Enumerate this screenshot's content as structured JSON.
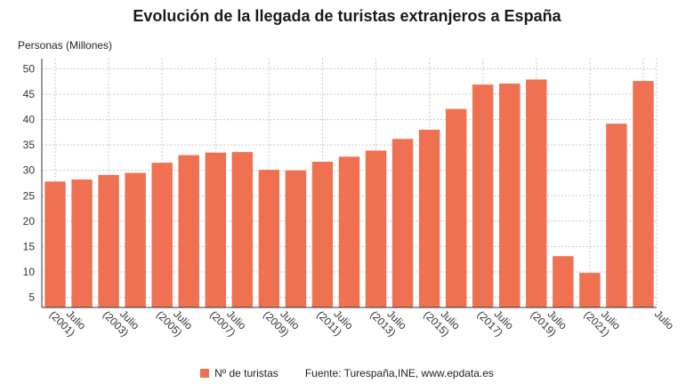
{
  "chart_data": {
    "type": "bar",
    "title": "Evolución de la llegada de turistas extranjeros a España",
    "ylabel": "Personas (Millones)",
    "xlabel": "",
    "ylim": [
      3,
      52
    ],
    "yticks": [
      5,
      10,
      15,
      20,
      25,
      30,
      35,
      40,
      45,
      50
    ],
    "grid": true,
    "legend_position": "bottom",
    "series": [
      {
        "name": "Nº de turistas",
        "color": "#f07052",
        "values": [
          27.8,
          28.2,
          29.1,
          29.5,
          31.5,
          33.0,
          33.5,
          33.6,
          30.1,
          30.0,
          31.7,
          32.7,
          33.9,
          36.2,
          38.0,
          42.1,
          46.9,
          47.1,
          47.9,
          13.1,
          9.8,
          39.2,
          47.6
        ]
      }
    ],
    "tick_labels": [
      {
        "line1": "Julio",
        "line2": "(2001)"
      },
      {
        "line1": "Julio",
        "line2": "(2003)"
      },
      {
        "line1": "Julio",
        "line2": "(2005)"
      },
      {
        "line1": "Julio",
        "line2": "(2007)"
      },
      {
        "line1": "Julio",
        "line2": "(2009)"
      },
      {
        "line1": "Julio",
        "line2": "(2011)"
      },
      {
        "line1": "Julio",
        "line2": "(2013)"
      },
      {
        "line1": "Julio",
        "line2": "(2015)"
      },
      {
        "line1": "Julio",
        "line2": "(2017)"
      },
      {
        "line1": "Julio",
        "line2": "(2019)"
      },
      {
        "line1": "Julio",
        "line2": "(2021)"
      },
      {
        "line1": "Julio",
        "line2": ""
      }
    ]
  },
  "legend": {
    "label": "Nº de turistas"
  },
  "source": {
    "text": "Fuente: Turespaña,INE, www.epdata.es"
  },
  "colors": {
    "bar": "#f07052",
    "grid": "#c8c8c8"
  }
}
